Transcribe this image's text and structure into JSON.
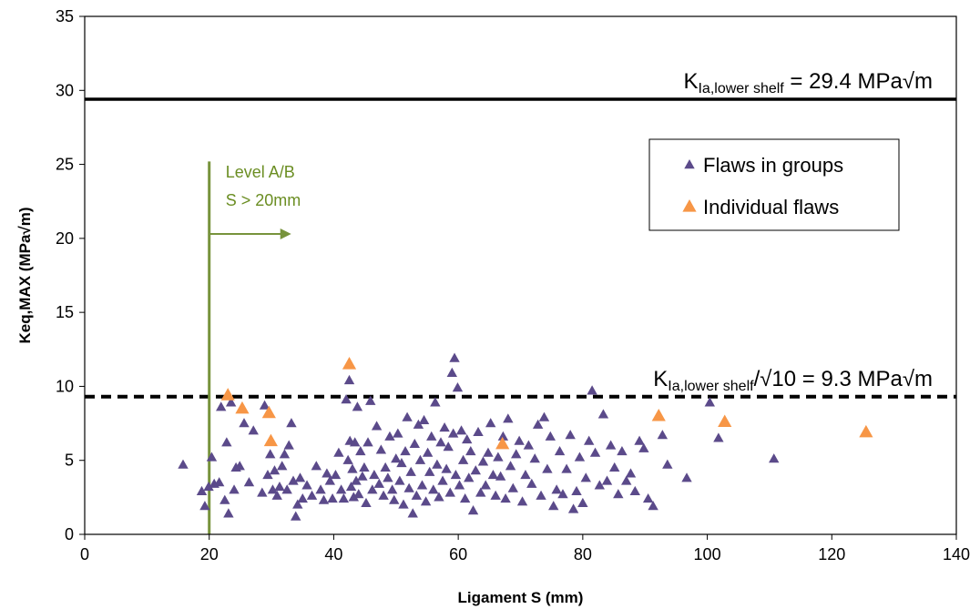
{
  "chart_data": {
    "type": "scatter",
    "xlabel": "Ligament S (mm)",
    "ylabel": "Keq,MAX  (MPa√m)",
    "xlim": [
      0,
      140
    ],
    "ylim": [
      0,
      35
    ],
    "x_ticks": [
      0,
      20,
      40,
      60,
      80,
      100,
      120,
      140
    ],
    "y_ticks": [
      0,
      5,
      10,
      15,
      20,
      25,
      30,
      35
    ],
    "grid": false,
    "legend_position": "top-right",
    "series": [
      {
        "name": "Flaws in groups",
        "color": "#5b4a8a",
        "marker": "triangle",
        "points": [
          [
            15.8,
            4.7
          ],
          [
            18.8,
            2.9
          ],
          [
            19.3,
            1.9
          ],
          [
            19.9,
            3.2
          ],
          [
            20.4,
            5.2
          ],
          [
            20.8,
            3.4
          ],
          [
            21.6,
            3.5
          ],
          [
            21.9,
            8.6
          ],
          [
            22.5,
            2.3
          ],
          [
            22.8,
            6.2
          ],
          [
            23.1,
            1.4
          ],
          [
            23.5,
            8.9
          ],
          [
            24.0,
            3.0
          ],
          [
            24.3,
            4.5
          ],
          [
            24.9,
            4.6
          ],
          [
            25.6,
            7.5
          ],
          [
            26.4,
            3.5
          ],
          [
            27.1,
            7.0
          ],
          [
            28.5,
            2.8
          ],
          [
            28.9,
            8.7
          ],
          [
            29.4,
            4.0
          ],
          [
            29.8,
            5.4
          ],
          [
            30.2,
            3.0
          ],
          [
            30.5,
            4.3
          ],
          [
            30.9,
            2.6
          ],
          [
            31.3,
            3.2
          ],
          [
            31.7,
            4.6
          ],
          [
            32.1,
            5.4
          ],
          [
            32.5,
            3.0
          ],
          [
            32.8,
            6.0
          ],
          [
            33.2,
            7.5
          ],
          [
            33.5,
            3.6
          ],
          [
            33.9,
            1.2
          ],
          [
            34.2,
            2.0
          ],
          [
            34.6,
            3.8
          ],
          [
            35.0,
            2.4
          ],
          [
            35.7,
            3.3
          ],
          [
            36.5,
            2.6
          ],
          [
            37.2,
            4.6
          ],
          [
            37.9,
            3.0
          ],
          [
            38.4,
            2.3
          ],
          [
            38.9,
            4.1
          ],
          [
            39.4,
            3.6
          ],
          [
            39.8,
            2.4
          ],
          [
            40.3,
            4.0
          ],
          [
            40.8,
            5.5
          ],
          [
            41.2,
            3.0
          ],
          [
            41.6,
            2.4
          ],
          [
            42.0,
            9.1
          ],
          [
            42.3,
            5.0
          ],
          [
            42.5,
            10.4
          ],
          [
            42.6,
            6.3
          ],
          [
            42.8,
            3.2
          ],
          [
            43.0,
            4.4
          ],
          [
            43.2,
            2.5
          ],
          [
            43.4,
            6.2
          ],
          [
            43.6,
            3.6
          ],
          [
            43.8,
            8.6
          ],
          [
            44.0,
            2.7
          ],
          [
            44.3,
            5.6
          ],
          [
            44.6,
            3.9
          ],
          [
            44.9,
            4.5
          ],
          [
            45.2,
            2.1
          ],
          [
            45.5,
            6.2
          ],
          [
            45.9,
            9.0
          ],
          [
            46.2,
            3.0
          ],
          [
            46.5,
            4.0
          ],
          [
            46.9,
            7.3
          ],
          [
            47.3,
            3.4
          ],
          [
            47.6,
            5.7
          ],
          [
            48.0,
            2.6
          ],
          [
            48.3,
            4.5
          ],
          [
            48.7,
            3.8
          ],
          [
            49.0,
            6.6
          ],
          [
            49.4,
            3.0
          ],
          [
            49.7,
            2.3
          ],
          [
            50.0,
            5.1
          ],
          [
            50.3,
            6.8
          ],
          [
            50.6,
            3.6
          ],
          [
            50.9,
            4.8
          ],
          [
            51.2,
            2.0
          ],
          [
            51.5,
            5.6
          ],
          [
            51.8,
            7.9
          ],
          [
            52.1,
            3.1
          ],
          [
            52.4,
            4.2
          ],
          [
            52.7,
            1.4
          ],
          [
            53.0,
            6.1
          ],
          [
            53.3,
            2.6
          ],
          [
            53.6,
            7.4
          ],
          [
            53.9,
            5.0
          ],
          [
            54.2,
            3.3
          ],
          [
            54.5,
            7.7
          ],
          [
            54.8,
            2.2
          ],
          [
            55.1,
            5.5
          ],
          [
            55.4,
            4.2
          ],
          [
            55.7,
            6.6
          ],
          [
            56.0,
            3.0
          ],
          [
            56.3,
            8.9
          ],
          [
            56.6,
            4.7
          ],
          [
            56.9,
            2.5
          ],
          [
            57.2,
            6.2
          ],
          [
            57.5,
            3.6
          ],
          [
            57.8,
            7.2
          ],
          [
            58.1,
            4.4
          ],
          [
            58.4,
            5.9
          ],
          [
            58.7,
            2.8
          ],
          [
            59.0,
            10.9
          ],
          [
            59.2,
            6.8
          ],
          [
            59.4,
            11.9
          ],
          [
            59.6,
            4.0
          ],
          [
            59.9,
            9.9
          ],
          [
            60.2,
            3.3
          ],
          [
            60.5,
            7.0
          ],
          [
            60.8,
            5.0
          ],
          [
            61.1,
            2.4
          ],
          [
            61.4,
            6.4
          ],
          [
            61.7,
            3.8
          ],
          [
            62.0,
            5.6
          ],
          [
            62.4,
            1.6
          ],
          [
            62.8,
            4.3
          ],
          [
            63.2,
            6.9
          ],
          [
            63.6,
            2.8
          ],
          [
            64.0,
            4.9
          ],
          [
            64.4,
            3.3
          ],
          [
            64.8,
            5.5
          ],
          [
            65.2,
            7.5
          ],
          [
            65.6,
            4.0
          ],
          [
            66.0,
            2.6
          ],
          [
            66.4,
            5.2
          ],
          [
            66.8,
            3.9
          ],
          [
            67.2,
            6.6
          ],
          [
            67.6,
            2.4
          ],
          [
            68.0,
            7.8
          ],
          [
            68.4,
            4.6
          ],
          [
            68.8,
            3.1
          ],
          [
            69.3,
            5.4
          ],
          [
            69.8,
            6.3
          ],
          [
            70.3,
            2.2
          ],
          [
            70.8,
            4.0
          ],
          [
            71.3,
            6.0
          ],
          [
            71.8,
            3.4
          ],
          [
            72.3,
            5.1
          ],
          [
            72.8,
            7.4
          ],
          [
            73.3,
            2.6
          ],
          [
            73.8,
            7.9
          ],
          [
            74.3,
            4.4
          ],
          [
            74.8,
            6.6
          ],
          [
            75.3,
            1.9
          ],
          [
            75.8,
            3.0
          ],
          [
            76.3,
            5.6
          ],
          [
            76.8,
            2.7
          ],
          [
            77.4,
            4.4
          ],
          [
            78.0,
            6.7
          ],
          [
            78.5,
            1.7
          ],
          [
            79.0,
            2.9
          ],
          [
            79.5,
            5.2
          ],
          [
            80.0,
            2.1
          ],
          [
            80.5,
            3.8
          ],
          [
            81.0,
            6.3
          ],
          [
            81.5,
            9.7
          ],
          [
            82.0,
            5.5
          ],
          [
            82.7,
            3.3
          ],
          [
            83.3,
            8.1
          ],
          [
            83.9,
            3.6
          ],
          [
            84.5,
            6.0
          ],
          [
            85.1,
            4.5
          ],
          [
            85.7,
            2.7
          ],
          [
            86.3,
            5.6
          ],
          [
            87.0,
            3.6
          ],
          [
            87.7,
            4.1
          ],
          [
            88.4,
            2.9
          ],
          [
            89.1,
            6.3
          ],
          [
            89.8,
            5.8
          ],
          [
            90.5,
            2.4
          ],
          [
            91.3,
            1.9
          ],
          [
            92.8,
            6.7
          ],
          [
            93.6,
            4.7
          ],
          [
            96.7,
            3.8
          ],
          [
            100.4,
            8.9
          ],
          [
            101.8,
            6.5
          ],
          [
            110.7,
            5.1
          ]
        ]
      },
      {
        "name": "Individual flaws",
        "color": "#f79646",
        "marker": "triangle",
        "points": [
          [
            23.0,
            9.4
          ],
          [
            25.3,
            8.5
          ],
          [
            29.6,
            8.2
          ],
          [
            29.9,
            6.3
          ],
          [
            42.5,
            11.5
          ],
          [
            67.1,
            6.1
          ],
          [
            92.2,
            8.0
          ],
          [
            102.8,
            7.6
          ],
          [
            125.5,
            6.9
          ]
        ]
      }
    ],
    "reference_lines": [
      {
        "y": 29.4,
        "style": "solid",
        "label_main": "K",
        "label_sub": "Ia,lower shelf",
        "label_rest": " = 29.4 MPa√m"
      },
      {
        "y": 9.3,
        "style": "dashed",
        "label_main": "K",
        "label_sub": "Ia,lower shelf",
        "label_rest": "/√10 = 9.3 MPa√m"
      }
    ],
    "level_line": {
      "x": 20,
      "color": "#77933c",
      "label_line1": "Level A/B",
      "label_line2": "S > 20mm"
    }
  }
}
